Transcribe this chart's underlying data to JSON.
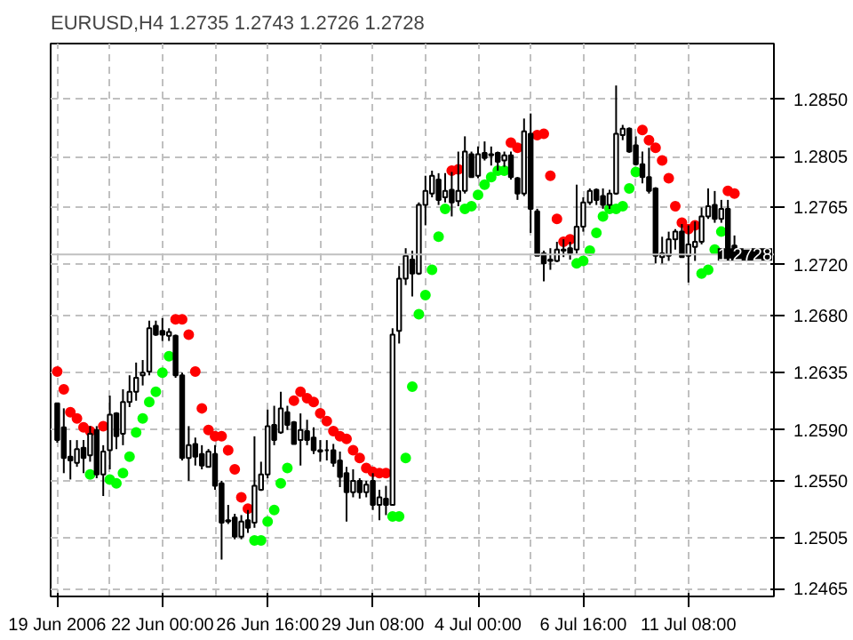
{
  "chart_data": {
    "type": "candlestick",
    "title": "EURUSD,H4  1.2735 1.2743 1.2726 1.2728",
    "categories": [
      "19 Jun 2006",
      null,
      null,
      null,
      null,
      null,
      null,
      null,
      null,
      null,
      null,
      null,
      null,
      null,
      null,
      null,
      "22 Jun 00:00",
      null,
      null,
      null,
      null,
      null,
      null,
      null,
      null,
      null,
      null,
      null,
      null,
      null,
      null,
      null,
      "26 Jun 16:00",
      null,
      null,
      null,
      null,
      null,
      null,
      null,
      null,
      null,
      null,
      null,
      null,
      null,
      null,
      null,
      "29 Jun 08:00",
      null,
      null,
      null,
      null,
      null,
      null,
      null,
      null,
      null,
      null,
      null,
      null,
      null,
      null,
      null,
      "4 Jul 00:00",
      null,
      null,
      null,
      null,
      null,
      null,
      null,
      null,
      null,
      null,
      null,
      null,
      null,
      null,
      null,
      "6 Jul 16:00",
      null,
      null,
      null,
      null,
      null,
      null,
      null,
      null,
      null,
      null,
      null,
      null,
      null,
      null,
      null,
      "11 Jul 08:00",
      null,
      null,
      null,
      null,
      null,
      null,
      null
    ],
    "ohlc": [
      [
        1.2611,
        1.2611,
        1.258,
        1.2582
      ],
      [
        1.2592,
        1.2607,
        1.2556,
        1.2568
      ],
      [
        1.2569,
        1.2582,
        1.2551,
        1.2566
      ],
      [
        1.2564,
        1.2582,
        1.2561,
        1.2575
      ],
      [
        1.2576,
        1.2582,
        1.2556,
        1.2568
      ],
      [
        1.257,
        1.2593,
        1.2565,
        1.2587
      ],
      [
        1.259,
        1.2593,
        1.2552,
        1.2555
      ],
      [
        1.2555,
        1.2578,
        1.2538,
        1.2573
      ],
      [
        1.2574,
        1.2617,
        1.2559,
        1.2602
      ],
      [
        1.2603,
        1.2604,
        1.2575,
        1.2585
      ],
      [
        1.2587,
        1.2622,
        1.2578,
        1.2612
      ],
      [
        1.2612,
        1.2633,
        1.2608,
        1.262
      ],
      [
        1.262,
        1.2643,
        1.2613,
        1.2631
      ],
      [
        1.2633,
        1.2645,
        1.2625,
        1.2635
      ],
      [
        1.2636,
        1.2676,
        1.2633,
        1.267
      ],
      [
        1.2672,
        1.2676,
        1.2664,
        1.2665
      ],
      [
        1.2668,
        1.2678,
        1.266,
        1.2665
      ],
      [
        1.2664,
        1.267,
        1.266,
        1.2667
      ],
      [
        1.2664,
        1.2665,
        1.2631,
        1.2633
      ],
      [
        1.2633,
        1.2635,
        1.2566,
        1.2568
      ],
      [
        1.2568,
        1.2593,
        1.255,
        1.2578
      ],
      [
        1.2579,
        1.2584,
        1.2562,
        1.2569
      ],
      [
        1.2571,
        1.2578,
        1.2559,
        1.2562
      ],
      [
        1.2561,
        1.2575,
        1.2561,
        1.2573
      ],
      [
        1.2571,
        1.2578,
        1.2543,
        1.2546
      ],
      [
        1.2548,
        1.255,
        1.2488,
        1.2517
      ],
      [
        1.2519,
        1.2531,
        1.2516,
        1.2518
      ],
      [
        1.2521,
        1.2524,
        1.2504,
        1.2506
      ],
      [
        1.2506,
        1.2523,
        1.2504,
        1.2518
      ],
      [
        1.2519,
        1.2527,
        1.2509,
        1.2513
      ],
      [
        1.2517,
        1.2585,
        1.2513,
        1.2546
      ],
      [
        1.2543,
        1.2565,
        1.2542,
        1.2555
      ],
      [
        1.2555,
        1.2606,
        1.2552,
        1.2593
      ],
      [
        1.2594,
        1.2609,
        1.2578,
        1.2582
      ],
      [
        1.2588,
        1.262,
        1.2587,
        1.2607
      ],
      [
        1.2604,
        1.2609,
        1.259,
        1.2594
      ],
      [
        1.2596,
        1.2597,
        1.2579,
        1.2579
      ],
      [
        1.2582,
        1.2603,
        1.2562,
        1.259
      ],
      [
        1.2589,
        1.2598,
        1.2578,
        1.2582
      ],
      [
        1.2584,
        1.2592,
        1.2571,
        1.2574
      ],
      [
        1.2574,
        1.2582,
        1.2565,
        1.2573
      ],
      [
        1.2574,
        1.2582,
        1.2566,
        1.2574
      ],
      [
        1.2574,
        1.2579,
        1.2561,
        1.2564
      ],
      [
        1.2566,
        1.2573,
        1.2545,
        1.2553
      ],
      [
        1.2556,
        1.2561,
        1.2518,
        1.2541
      ],
      [
        1.2541,
        1.2559,
        1.2537,
        1.255
      ],
      [
        1.255,
        1.2552,
        1.2536,
        1.2541
      ],
      [
        1.2541,
        1.255,
        1.2537,
        1.2547
      ],
      [
        1.255,
        1.2556,
        1.2527,
        1.2531
      ],
      [
        1.2531,
        1.2543,
        1.2519,
        1.2537
      ],
      [
        1.2536,
        1.2546,
        1.2523,
        1.2531
      ],
      [
        1.2531,
        1.267,
        1.2531,
        1.2665
      ],
      [
        1.2668,
        1.2719,
        1.2658,
        1.2709
      ],
      [
        1.2709,
        1.2733,
        1.2704,
        1.2727
      ],
      [
        1.2724,
        1.2731,
        1.2695,
        1.2713
      ],
      [
        1.2713,
        1.2769,
        1.2712,
        1.2767
      ],
      [
        1.2767,
        1.279,
        1.2751,
        1.2778
      ],
      [
        1.2776,
        1.2794,
        1.2773,
        1.279
      ],
      [
        1.2787,
        1.2792,
        1.2767,
        1.2771
      ],
      [
        1.2773,
        1.2792,
        1.2769,
        1.2778
      ],
      [
        1.2779,
        1.2793,
        1.2758,
        1.2769
      ],
      [
        1.277,
        1.2809,
        1.2766,
        1.2778
      ],
      [
        1.2778,
        1.2821,
        1.2776,
        1.2809
      ],
      [
        1.2807,
        1.2809,
        1.2789,
        1.2789
      ],
      [
        1.279,
        1.2813,
        1.2788,
        1.2807
      ],
      [
        1.2808,
        1.2817,
        1.2802,
        1.2804
      ],
      [
        1.2807,
        1.2813,
        1.2798,
        1.2806
      ],
      [
        1.2808,
        1.2809,
        1.2794,
        1.2801
      ],
      [
        1.2802,
        1.2809,
        1.2797,
        1.2806
      ],
      [
        1.2806,
        1.2809,
        1.2787,
        1.2789
      ],
      [
        1.2788,
        1.2789,
        1.2771,
        1.2776
      ],
      [
        1.2776,
        1.2835,
        1.2774,
        1.2825
      ],
      [
        1.2823,
        1.2839,
        1.2745,
        1.2764
      ],
      [
        1.2762,
        1.2764,
        1.2727,
        1.2727
      ],
      [
        1.2729,
        1.2731,
        1.2707,
        1.2721
      ],
      [
        1.2724,
        1.2733,
        1.2716,
        1.2723
      ],
      [
        1.2723,
        1.2738,
        1.2722,
        1.2732
      ],
      [
        1.2732,
        1.274,
        1.2726,
        1.2731
      ],
      [
        1.2733,
        1.2738,
        1.2724,
        1.2729
      ],
      [
        1.2732,
        1.2783,
        1.2729,
        1.275
      ],
      [
        1.275,
        1.2773,
        1.2746,
        1.2769
      ],
      [
        1.2769,
        1.278,
        1.2767,
        1.2778
      ],
      [
        1.2779,
        1.278,
        1.2767,
        1.2771
      ],
      [
        1.2774,
        1.278,
        1.2764,
        1.2767
      ],
      [
        1.2767,
        1.2779,
        1.2764,
        1.2776
      ],
      [
        1.2776,
        1.2861,
        1.2775,
        1.2823
      ],
      [
        1.2822,
        1.283,
        1.2818,
        1.2827
      ],
      [
        1.2827,
        1.2828,
        1.2808,
        1.2809
      ],
      [
        1.2814,
        1.2821,
        1.2798,
        1.2799
      ],
      [
        1.2799,
        1.2809,
        1.2784,
        1.2789
      ],
      [
        1.2789,
        1.2812,
        1.2776,
        1.2778
      ],
      [
        1.278,
        1.2781,
        1.2721,
        1.2727
      ],
      [
        1.2726,
        1.2742,
        1.2721,
        1.2729
      ],
      [
        1.2727,
        1.2746,
        1.2723,
        1.274
      ],
      [
        1.274,
        1.2748,
        1.2732,
        1.2746
      ],
      [
        1.2746,
        1.2752,
        1.2726,
        1.2726
      ],
      [
        1.2727,
        1.2751,
        1.2706,
        1.2736
      ],
      [
        1.2734,
        1.2754,
        1.2723,
        1.2738
      ],
      [
        1.2738,
        1.2765,
        1.2736,
        1.2758
      ],
      [
        1.2758,
        1.278,
        1.2756,
        1.2766
      ],
      [
        1.2767,
        1.2778,
        1.2753,
        1.2756
      ],
      [
        1.2756,
        1.2771,
        1.2753,
        1.2764
      ],
      [
        1.2764,
        1.2771,
        1.2729,
        1.2733
      ],
      [
        1.2735,
        1.2743,
        1.2726,
        1.2728
      ]
    ],
    "series": [
      {
        "type": "scatter",
        "color": "#ff0000",
        "values": [
          1.2636,
          1.2622,
          1.2604,
          1.2599,
          1.2592,
          1.2589,
          null,
          1.2593,
          null,
          null,
          null,
          null,
          null,
          null,
          null,
          null,
          null,
          null,
          1.2677,
          1.2677,
          1.2665,
          1.2636,
          1.2607,
          1.259,
          1.2585,
          1.2585,
          1.2574,
          1.2559,
          1.2537,
          1.2528,
          null,
          null,
          null,
          null,
          null,
          null,
          1.2613,
          1.262,
          1.2615,
          1.2612,
          1.2603,
          1.2597,
          1.2589,
          1.2585,
          1.2583,
          1.2574,
          1.2568,
          1.256,
          1.2557,
          1.2556,
          1.2556,
          null,
          null,
          null,
          null,
          null,
          null,
          null,
          null,
          null,
          1.2794,
          1.2795,
          null,
          null,
          null,
          null,
          null,
          null,
          null,
          1.2816,
          1.2812,
          null,
          null,
          1.2822,
          1.2823,
          1.279,
          1.2756,
          1.2738,
          1.274,
          null,
          null,
          null,
          null,
          null,
          null,
          null,
          null,
          null,
          null,
          1.2826,
          1.2818,
          1.2812,
          1.2802,
          1.2788,
          1.2766,
          1.2753,
          1.2748,
          1.2751,
          null,
          null,
          null,
          null,
          1.2778,
          1.2776
        ]
      },
      {
        "type": "scatter",
        "color": "#00ff00",
        "values": [
          null,
          null,
          null,
          null,
          null,
          1.2555,
          null,
          null,
          1.2551,
          1.2548,
          1.2556,
          1.2569,
          1.2588,
          1.2599,
          1.2612,
          1.262,
          1.2635,
          1.2648,
          null,
          null,
          null,
          null,
          null,
          null,
          null,
          null,
          null,
          null,
          null,
          null,
          1.2503,
          1.2503,
          1.2518,
          1.2527,
          1.2548,
          1.256,
          null,
          null,
          null,
          null,
          null,
          null,
          null,
          null,
          null,
          null,
          null,
          null,
          null,
          null,
          null,
          1.2522,
          1.2522,
          1.2568,
          1.2624,
          1.2681,
          1.2696,
          1.2716,
          1.2742,
          1.2764,
          null,
          null,
          1.2764,
          1.2766,
          1.2775,
          1.2783,
          1.2789,
          1.2794,
          1.2794,
          null,
          null,
          null,
          null,
          null,
          null,
          null,
          null,
          null,
          null,
          1.2721,
          1.2723,
          1.2731,
          1.2745,
          1.2758,
          1.2764,
          1.2764,
          1.2766,
          1.278,
          1.2793,
          null,
          null,
          null,
          null,
          null,
          null,
          null,
          null,
          null,
          1.2713,
          1.2716,
          1.2732,
          1.2746,
          null,
          null
        ]
      }
    ],
    "marker": "circle",
    "ylim": [
      1.2459,
      1.2894
    ],
    "yticks": [
      {
        "value": 1.2465,
        "label": "1.2465"
      },
      {
        "value": 1.2505,
        "label": "1.2505"
      },
      {
        "value": 1.255,
        "label": "1.2550"
      },
      {
        "value": 1.259,
        "label": "1.2590"
      },
      {
        "value": 1.2635,
        "label": "1.2635"
      },
      {
        "value": 1.268,
        "label": "1.2680"
      },
      {
        "value": 1.272,
        "label": "1.2720"
      },
      {
        "value": 1.2765,
        "label": "1.2765"
      },
      {
        "value": 1.2805,
        "label": "1.2805"
      },
      {
        "value": 1.285,
        "label": "1.2850"
      }
    ],
    "ref_lines": [
      {
        "axis": "y",
        "value": 1.2728,
        "label": "1.2728",
        "color": "#c0c0c0"
      }
    ],
    "grid": true
  }
}
